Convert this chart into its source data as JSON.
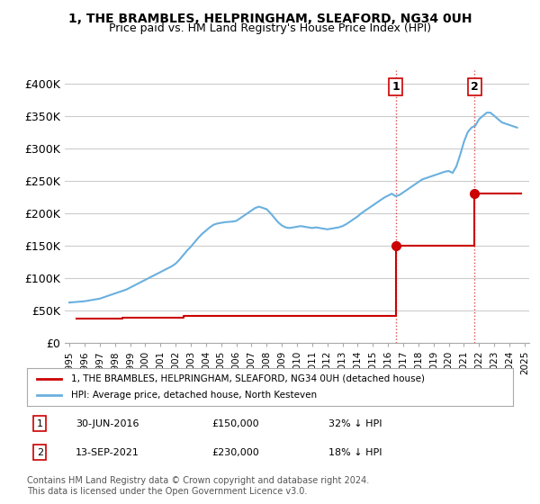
{
  "title": "1, THE BRAMBLES, HELPRINGHAM, SLEAFORD, NG34 0UH",
  "subtitle": "Price paid vs. HM Land Registry's House Price Index (HPI)",
  "ylabel": "",
  "xlabel": "",
  "ylim": [
    0,
    420000
  ],
  "yticks": [
    0,
    50000,
    100000,
    150000,
    200000,
    250000,
    300000,
    350000,
    400000
  ],
  "ytick_labels": [
    "£0",
    "£50K",
    "£100K",
    "£150K",
    "£200K",
    "£250K",
    "£300K",
    "£350K",
    "£400K"
  ],
  "hpi_color": "#6ab0de",
  "price_color": "#cc0000",
  "bg_color": "#ffffff",
  "grid_color": "#cccccc",
  "purchase1_date": 2016.5,
  "purchase1_price": 150000,
  "purchase1_label": "1",
  "purchase2_date": 2021.71,
  "purchase2_price": 230000,
  "purchase2_label": "2",
  "legend_line1": "1, THE BRAMBLES, HELPRINGHAM, SLEAFORD, NG34 0UH (detached house)",
  "legend_line2": "HPI: Average price, detached house, North Kesteven",
  "annotation1": "30-JUN-2016        £150,000        32% ↓ HPI",
  "annotation2": "13-SEP-2021        £230,000        18% ↓ HPI",
  "footnote": "Contains HM Land Registry data © Crown copyright and database right 2024.\nThis data is licensed under the Open Government Licence v3.0.",
  "hpi_x": [
    1995.0,
    1995.25,
    1995.5,
    1995.75,
    1996.0,
    1996.25,
    1996.5,
    1996.75,
    1997.0,
    1997.25,
    1997.5,
    1997.75,
    1998.0,
    1998.25,
    1998.5,
    1998.75,
    1999.0,
    1999.25,
    1999.5,
    1999.75,
    2000.0,
    2000.25,
    2000.5,
    2000.75,
    2001.0,
    2001.25,
    2001.5,
    2001.75,
    2002.0,
    2002.25,
    2002.5,
    2002.75,
    2003.0,
    2003.25,
    2003.5,
    2003.75,
    2004.0,
    2004.25,
    2004.5,
    2004.75,
    2005.0,
    2005.25,
    2005.5,
    2005.75,
    2006.0,
    2006.25,
    2006.5,
    2006.75,
    2007.0,
    2007.25,
    2007.5,
    2007.75,
    2008.0,
    2008.25,
    2008.5,
    2008.75,
    2009.0,
    2009.25,
    2009.5,
    2009.75,
    2010.0,
    2010.25,
    2010.5,
    2010.75,
    2011.0,
    2011.25,
    2011.5,
    2011.75,
    2012.0,
    2012.25,
    2012.5,
    2012.75,
    2013.0,
    2013.25,
    2013.5,
    2013.75,
    2014.0,
    2014.25,
    2014.5,
    2014.75,
    2015.0,
    2015.25,
    2015.5,
    2015.75,
    2016.0,
    2016.25,
    2016.5,
    2016.75,
    2017.0,
    2017.25,
    2017.5,
    2017.75,
    2018.0,
    2018.25,
    2018.5,
    2018.75,
    2019.0,
    2019.25,
    2019.5,
    2019.75,
    2020.0,
    2020.25,
    2020.5,
    2020.75,
    2021.0,
    2021.25,
    2021.5,
    2021.75,
    2022.0,
    2022.25,
    2022.5,
    2022.75,
    2023.0,
    2023.25,
    2023.5,
    2023.75,
    2024.0,
    2024.25,
    2024.5
  ],
  "hpi_y": [
    62000,
    62500,
    63000,
    63500,
    64000,
    65000,
    66000,
    67000,
    68000,
    70000,
    72000,
    74000,
    76000,
    78000,
    80000,
    82000,
    85000,
    88000,
    91000,
    94000,
    97000,
    100000,
    103000,
    106000,
    109000,
    112000,
    115000,
    118000,
    122000,
    128000,
    135000,
    142000,
    148000,
    155000,
    162000,
    168000,
    173000,
    178000,
    182000,
    184000,
    185000,
    186000,
    186500,
    187000,
    188000,
    192000,
    196000,
    200000,
    204000,
    208000,
    210000,
    208000,
    206000,
    200000,
    193000,
    186000,
    181000,
    178000,
    177000,
    178000,
    179000,
    180000,
    179000,
    178000,
    177000,
    178000,
    177000,
    176000,
    175000,
    176000,
    177000,
    178000,
    180000,
    183000,
    187000,
    191000,
    195000,
    200000,
    204000,
    208000,
    212000,
    216000,
    220000,
    224000,
    227000,
    230000,
    226000,
    228000,
    232000,
    236000,
    240000,
    244000,
    248000,
    252000,
    254000,
    256000,
    258000,
    260000,
    262000,
    264000,
    265000,
    262000,
    272000,
    290000,
    310000,
    325000,
    332000,
    335000,
    345000,
    350000,
    355000,
    355000,
    350000,
    345000,
    340000,
    338000,
    336000,
    334000,
    332000
  ],
  "price_x": [
    1995.5,
    1998.5,
    2002.5,
    2016.5,
    2021.71
  ],
  "price_y": [
    37000,
    38000,
    42000,
    150000,
    230000
  ],
  "xtick_years": [
    1995,
    1996,
    1997,
    1998,
    1999,
    2000,
    2001,
    2002,
    2003,
    2004,
    2005,
    2006,
    2007,
    2008,
    2009,
    2010,
    2011,
    2012,
    2013,
    2014,
    2015,
    2016,
    2017,
    2018,
    2019,
    2020,
    2021,
    2022,
    2023,
    2024,
    2025
  ]
}
